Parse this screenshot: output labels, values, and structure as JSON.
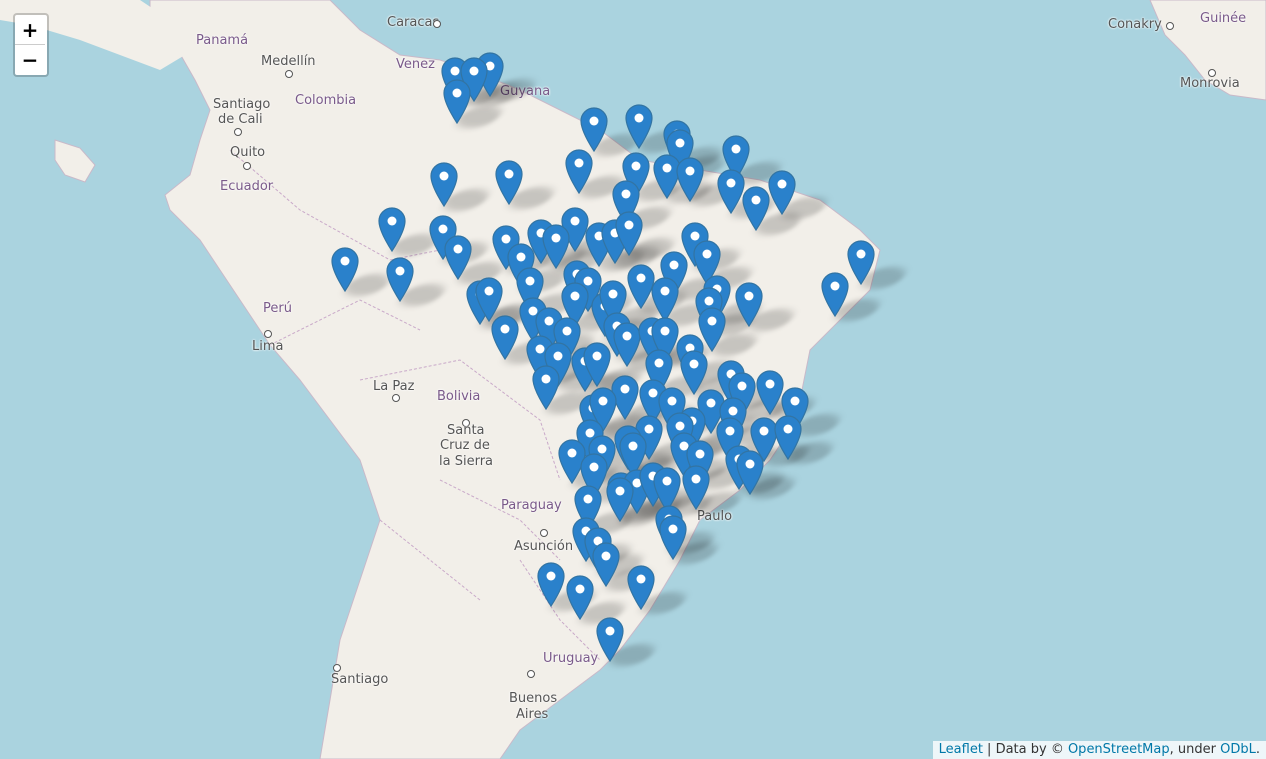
{
  "zoom": {
    "in_label": "+",
    "out_label": "−"
  },
  "attribution": {
    "leaflet": "Leaflet",
    "data_by": " | Data by © ",
    "osm": "OpenStreetMap",
    "under": ", under ",
    "odbl": "ODbL",
    "end": "."
  },
  "places": [
    {
      "id": "caracas",
      "label": "Caracas"
    },
    {
      "id": "conakry",
      "label": "Conakry"
    },
    {
      "id": "guinee",
      "label": "Guinée"
    },
    {
      "id": "panama",
      "label": "Panamá"
    },
    {
      "id": "medellin",
      "label": "Medellín"
    },
    {
      "id": "venezuela",
      "label": "Venez"
    },
    {
      "id": "guyana",
      "label": "Guyana"
    },
    {
      "id": "monrovia",
      "label": "Monrovia"
    },
    {
      "id": "santiago-cali-1",
      "label": "Santiago"
    },
    {
      "id": "santiago-cali-2",
      "label": "de Cali"
    },
    {
      "id": "colombia",
      "label": "Colombia"
    },
    {
      "id": "quito",
      "label": "Quito"
    },
    {
      "id": "ecuador",
      "label": "Ecuador"
    },
    {
      "id": "peru",
      "label": "Perú"
    },
    {
      "id": "lima",
      "label": "Lima"
    },
    {
      "id": "lapaz",
      "label": "La Paz"
    },
    {
      "id": "bolivia",
      "label": "Bolivia"
    },
    {
      "id": "santacruz-1",
      "label": "Santa"
    },
    {
      "id": "santacruz-2",
      "label": "Cruz de"
    },
    {
      "id": "santacruz-3",
      "label": "la Sierra"
    },
    {
      "id": "paraguay",
      "label": "Paraguay"
    },
    {
      "id": "asuncion",
      "label": "Asunción"
    },
    {
      "id": "saopaulo",
      "label": "Paulo"
    },
    {
      "id": "uruguay",
      "label": "Uruguay"
    },
    {
      "id": "santiago",
      "label": "Santiago"
    },
    {
      "id": "buenos-1",
      "label": "Buenos"
    },
    {
      "id": "buenos-2",
      "label": "Aires"
    }
  ],
  "colors": {
    "water": "#aad3df",
    "land": "#f2efe9",
    "marker": "#2a81cb",
    "marker_dark": "#3274a3"
  },
  "marker_icon": "map-pin-icon"
}
